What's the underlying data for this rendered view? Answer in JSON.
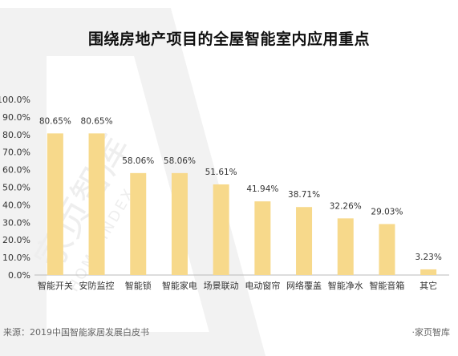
{
  "title": "围绕房地产项目的全屋智能室内应用重点",
  "source": "来源：2019中国智能家居发展白皮书",
  "brand": "·家页智库",
  "watermark": {
    "text_cn": "家页智库",
    "text_en": "HOME INDEX"
  },
  "colors": {
    "bar": "#f7d98b",
    "axis": "#bbbbbb",
    "text": "#333333",
    "watermark": "#f1f1f1"
  },
  "chart_data": {
    "type": "bar",
    "categories": [
      "智能开关",
      "安防监控",
      "智能锁",
      "智能家电",
      "场景联动",
      "电动窗帘",
      "网络覆盖",
      "智能净水",
      "智能音箱",
      "其它"
    ],
    "values": [
      80.65,
      80.65,
      58.06,
      58.06,
      51.61,
      41.94,
      38.71,
      32.26,
      29.03,
      3.23
    ],
    "data_labels": [
      "80.65%",
      "80.65%",
      "58.06%",
      "58.06%",
      "51.61%",
      "41.94%",
      "38.71%",
      "32.26%",
      "29.03%",
      "3.23%"
    ],
    "yticks": [
      "0.0%",
      "10.0%",
      "20.0%",
      "30.0%",
      "40.0%",
      "50.0%",
      "60.0%",
      "70.0%",
      "80.0%",
      "90.0%",
      "100.0%"
    ],
    "ylim": [
      0,
      100
    ],
    "xlabel": "",
    "ylabel": "",
    "grid": false,
    "legend": "none"
  }
}
